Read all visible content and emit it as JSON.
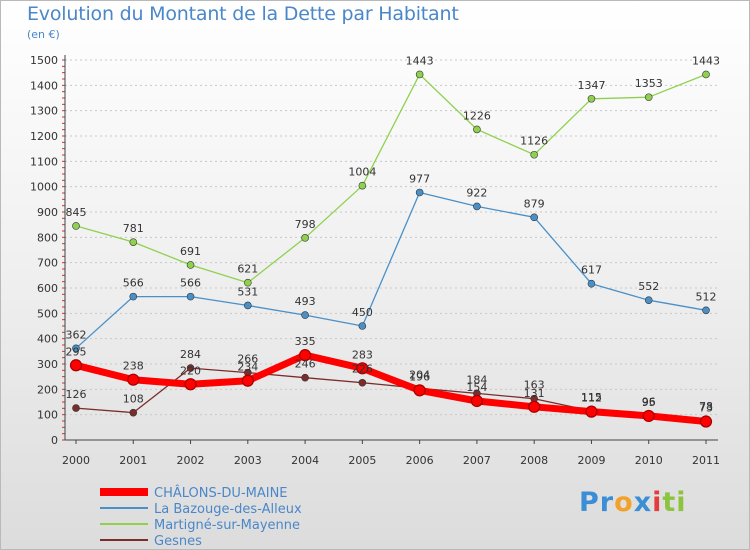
{
  "chart_data": {
    "type": "line",
    "title": "Evolution du Montant de la Dette par Habitant",
    "subtitle": "(en €)",
    "xlabel": "",
    "ylabel": "",
    "categories": [
      "2000",
      "2001",
      "2002",
      "2003",
      "2004",
      "2005",
      "2006",
      "2007",
      "2008",
      "2009",
      "2010",
      "2011"
    ],
    "ylim": [
      0,
      1500
    ],
    "yticks": [
      0,
      100,
      200,
      300,
      400,
      500,
      600,
      700,
      800,
      900,
      1000,
      1100,
      1200,
      1300,
      1400,
      1500
    ],
    "grid": "horizontal dashed",
    "legend_position": "bottom-left",
    "series": [
      {
        "name": "CHÂLONS-DU-MAINE",
        "color": "#ff0000",
        "values": [
          295,
          238,
          220,
          234,
          335,
          283,
          196,
          154,
          131,
          112,
          95,
          73
        ],
        "labels": [
          "295",
          "238",
          "220",
          "234",
          "335",
          "283",
          "196",
          "154",
          "131",
          "112",
          "95",
          "73"
        ]
      },
      {
        "name": "La Bazouge-des-Alleux",
        "color": "#4a90c8",
        "values": [
          362,
          566,
          566,
          531,
          493,
          450,
          977,
          922,
          879,
          617,
          552,
          512
        ],
        "labels": [
          "362",
          "566",
          "566",
          "531",
          "493",
          "450",
          "977",
          "922",
          "879",
          "617",
          "552",
          "512"
        ]
      },
      {
        "name": "Martigné-sur-Mayenne",
        "color": "#8fd14f",
        "values": [
          845,
          781,
          691,
          621,
          798,
          1004,
          1443,
          1226,
          1126,
          1347,
          1353,
          1443
        ],
        "labels": [
          "845",
          "781",
          "691",
          "621",
          "798",
          "1004",
          "1443",
          "1226",
          "1126",
          "1347",
          "1353",
          "1443"
        ]
      },
      {
        "name": "Gesnes",
        "color": "#7b2d2d",
        "values": [
          126,
          108,
          284,
          266,
          246,
          226,
          204,
          184,
          163,
          115,
          96,
          78
        ],
        "labels": [
          "126",
          "108",
          "284",
          "266",
          "246",
          "226",
          "204",
          "184",
          "163",
          "115",
          "96",
          "78"
        ]
      }
    ]
  },
  "brand": {
    "text": "Proxiti",
    "letters": [
      "P",
      "r",
      "o",
      "x",
      "i",
      "t",
      "i"
    ],
    "colors": [
      "#3a8ed6",
      "#3a8ed6",
      "#f2a22b",
      "#3a8ed6",
      "#e23d3d",
      "#8cc43f",
      "#8cc43f"
    ]
  }
}
